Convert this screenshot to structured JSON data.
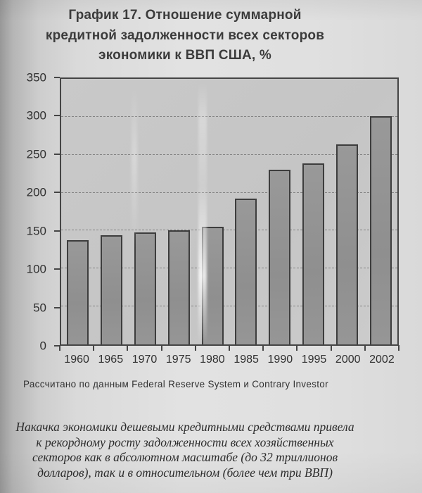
{
  "page": {
    "title_lines": [
      "График 17. Отношение суммарной",
      "кредитной задолженности всех секторов",
      "экономики к ВВП США, %"
    ],
    "source_note": "Рассчитано по данным Federal Reserve System и Contrary Investor",
    "caption_lines": [
      "Накачка экономики дешевыми кредитными средствами привела",
      "к рекордному росту задолженности всех хозяйственных",
      "секторов как в абсолютном масштабе (до 32 триллионов",
      "долларов), так и в относительном (более чем три ВВП)"
    ]
  },
  "chart_data": {
    "type": "bar",
    "title": "График 17. Отношение суммарной кредитной задолженности всех секторов экономики к ВВП США, %",
    "categories": [
      "1960",
      "1965",
      "1970",
      "1975",
      "1980",
      "1985",
      "1990",
      "1995",
      "2000",
      "2002"
    ],
    "values": [
      137,
      144,
      148,
      150,
      155,
      192,
      230,
      239,
      264,
      301
    ],
    "xlabel": "",
    "ylabel": "",
    "ylim": [
      0,
      350
    ],
    "ytick_step": 50,
    "grid": "horizontal dashed lines every 50 units",
    "legend": "none",
    "colors": {
      "bar_fill": "#929292",
      "bar_border": "#3d3d3d",
      "plot_background": "#c7c7c7",
      "axis": "#454545",
      "text": "#303030"
    }
  }
}
